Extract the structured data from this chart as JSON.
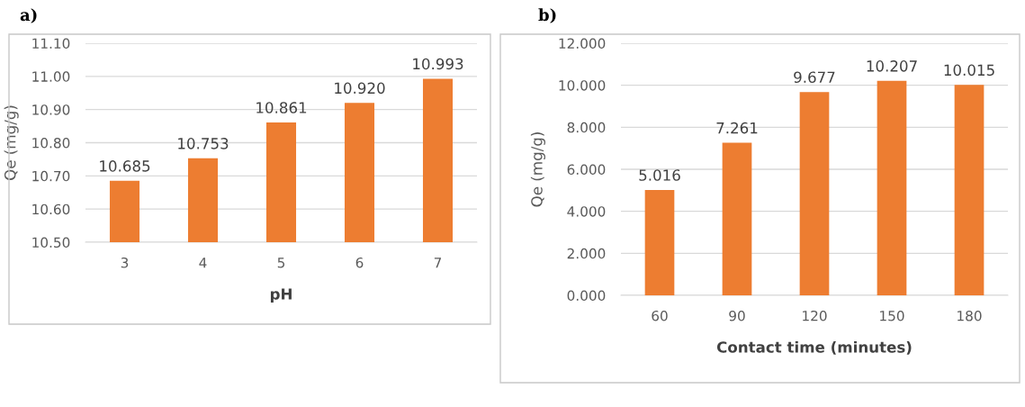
{
  "chart_data": [
    {
      "type": "bar",
      "title": "a)",
      "xlabel": "pH",
      "ylabel": "Qe (mg/g)",
      "categories": [
        "3",
        "4",
        "5",
        "6",
        "7"
      ],
      "series": [
        {
          "color": "#ed7d31",
          "values": [
            10.685,
            10.753,
            10.861,
            10.92,
            10.993
          ],
          "value_labels": [
            "10.685",
            "10.753",
            "10.861",
            "10.920",
            "10.993"
          ]
        }
      ],
      "ylim": [
        10.5,
        11.1
      ],
      "yticks": [
        {
          "value": 10.5,
          "label": "10.50"
        },
        {
          "value": 10.6,
          "label": "10.60"
        },
        {
          "value": 10.7,
          "label": "10.70"
        },
        {
          "value": 10.8,
          "label": "10.80"
        },
        {
          "value": 10.9,
          "label": "10.90"
        },
        {
          "value": 11.0,
          "label": "11.00"
        },
        {
          "value": 11.1,
          "label": "11.10"
        }
      ],
      "grid": "y"
    },
    {
      "type": "bar",
      "title": "b)",
      "xlabel": "Contact time (minutes)",
      "ylabel": "Qe (mg/g)",
      "categories": [
        "60",
        "90",
        "120",
        "150",
        "180"
      ],
      "series": [
        {
          "color": "#ed7d31",
          "values": [
            5.016,
            7.261,
            9.677,
            10.207,
            10.015
          ],
          "value_labels": [
            "5.016",
            "7.261",
            "9.677",
            "10.207",
            "10.015"
          ]
        }
      ],
      "ylim": [
        0,
        12
      ],
      "yticks": [
        {
          "value": 0,
          "label": "0.000"
        },
        {
          "value": 2,
          "label": "2.000"
        },
        {
          "value": 4,
          "label": "4.000"
        },
        {
          "value": 6,
          "label": "6.000"
        },
        {
          "value": 8,
          "label": "8.000"
        },
        {
          "value": 10,
          "label": "10.000"
        },
        {
          "value": 12,
          "label": "12.000"
        }
      ],
      "grid": "y"
    }
  ]
}
